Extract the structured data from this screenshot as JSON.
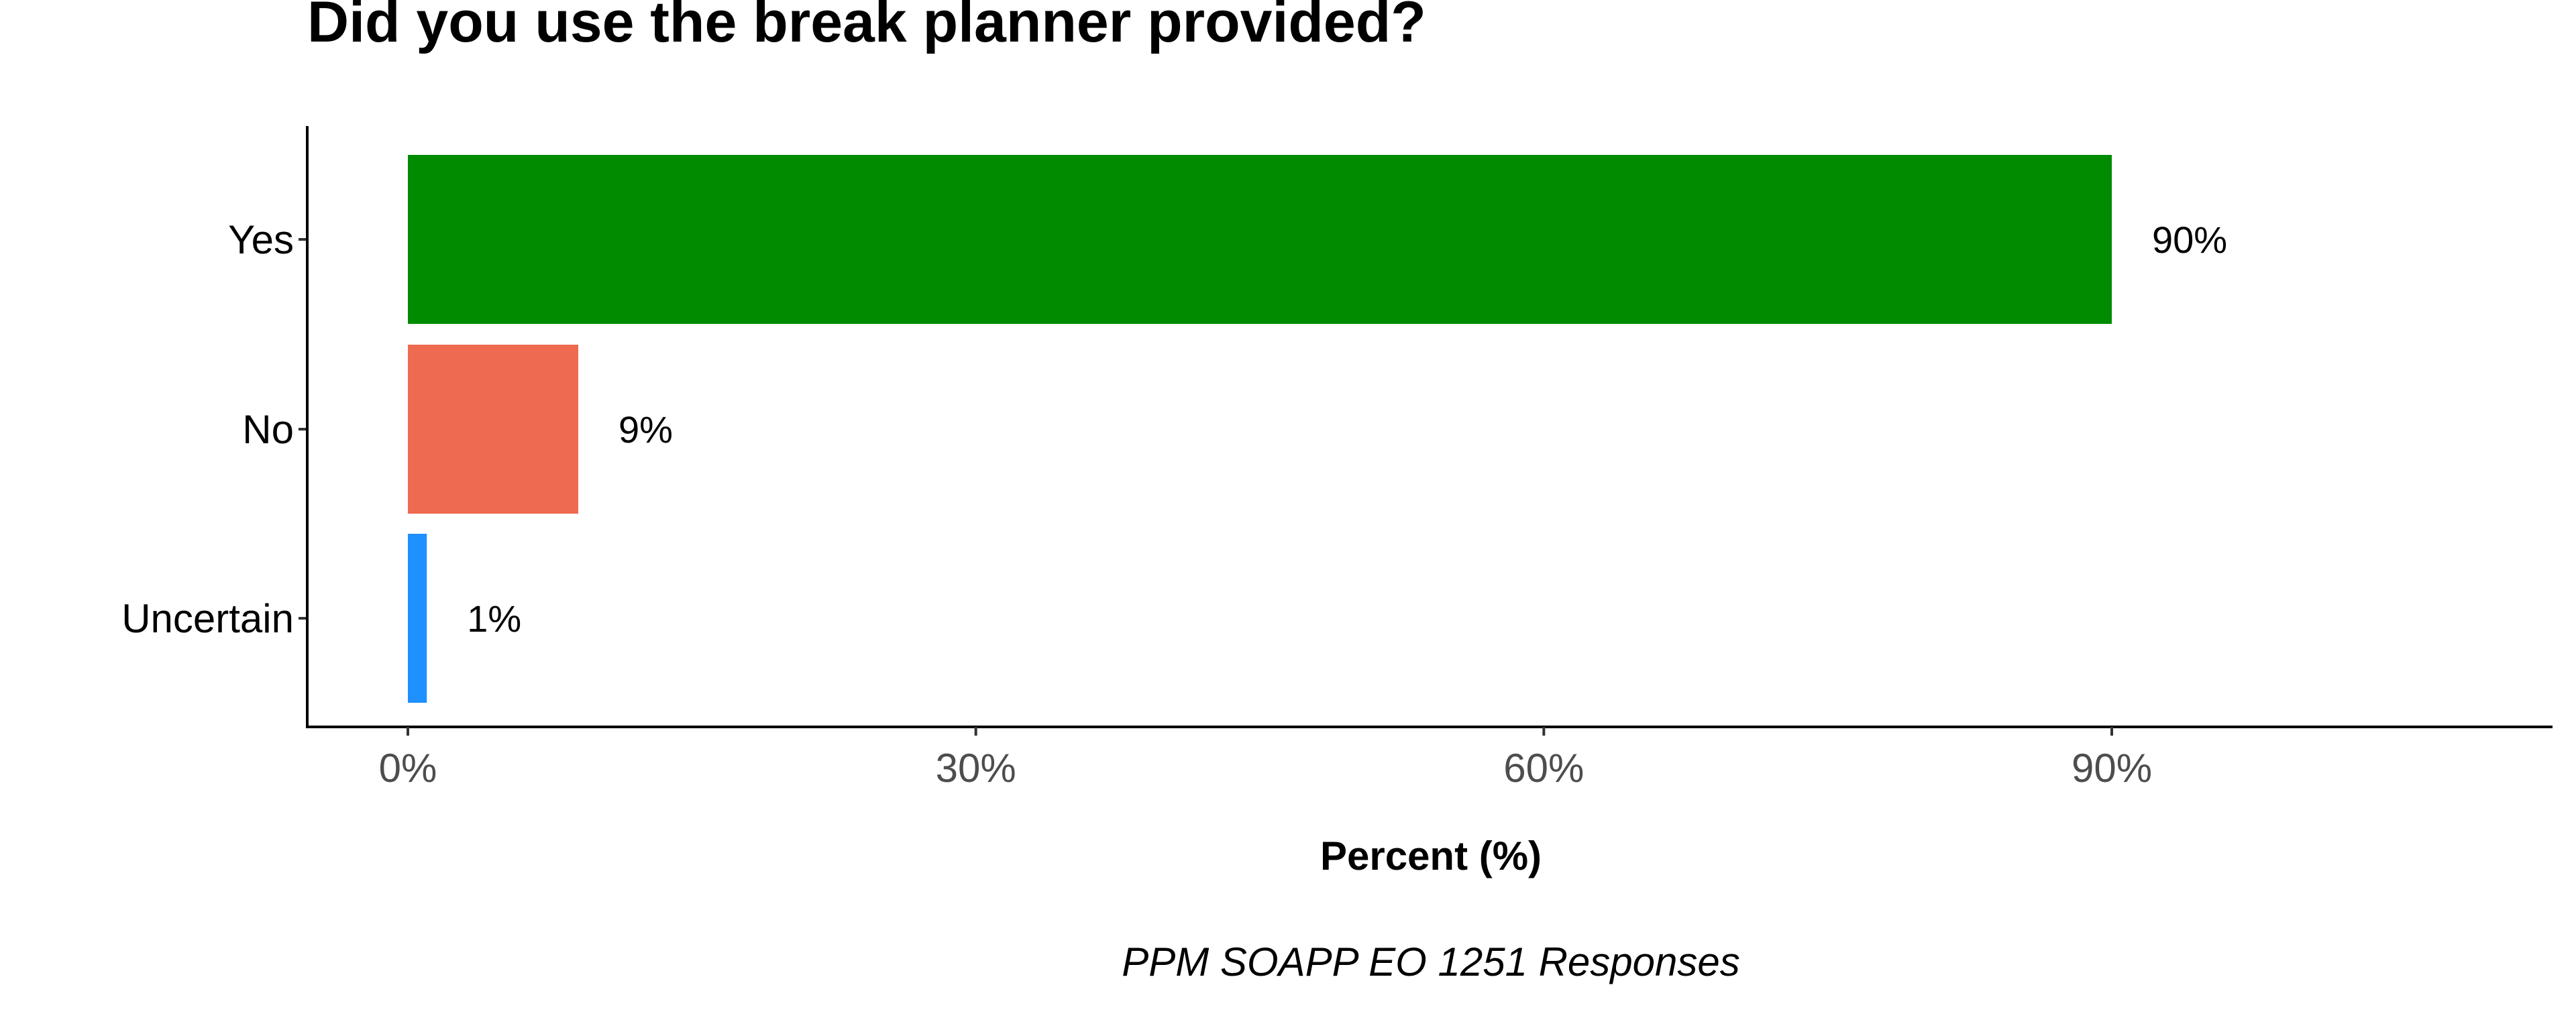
{
  "chart_data": {
    "type": "bar",
    "orientation": "horizontal",
    "title": "Did you use the break planner provided?",
    "xlabel": "Percent (%)",
    "ylabel": "",
    "caption": "PPM SOAPP EO 1251 Responses",
    "categories": [
      "Yes",
      "No",
      "Uncertain"
    ],
    "values": [
      90,
      9,
      1
    ],
    "data_labels": [
      "90%",
      "9%",
      "1%"
    ],
    "colors": [
      "#008B00",
      "#EE6A50",
      "#1E90FF"
    ],
    "xlim": [
      0,
      110
    ],
    "x_ticks": [
      0,
      30,
      60,
      90
    ],
    "x_tick_labels": [
      "0%",
      "30%",
      "60%",
      "90%"
    ],
    "grid": false,
    "legend": "none"
  }
}
